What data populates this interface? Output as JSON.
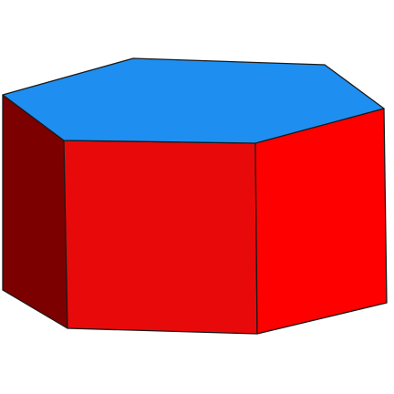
{
  "colors": {
    "background": "#ffffff",
    "top_face": "#1e8ff0",
    "left_face": "#7d0000",
    "front_face": "#e80a0a",
    "right_face": "#ff0000",
    "edges": "#1a1a1a"
  },
  "faces": [
    "top",
    "left",
    "front",
    "right"
  ]
}
